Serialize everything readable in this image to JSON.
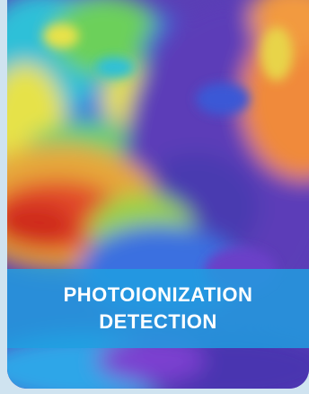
{
  "card": {
    "image_icon": "thermal-heatmap-image",
    "caption_line_1": "PHOTOIONIZATION",
    "caption_line_2": "DETECTION"
  },
  "colors": {
    "page_background": "#cfe3f0",
    "caption_band": "#1ea0e1",
    "caption_text": "#ffffff"
  }
}
